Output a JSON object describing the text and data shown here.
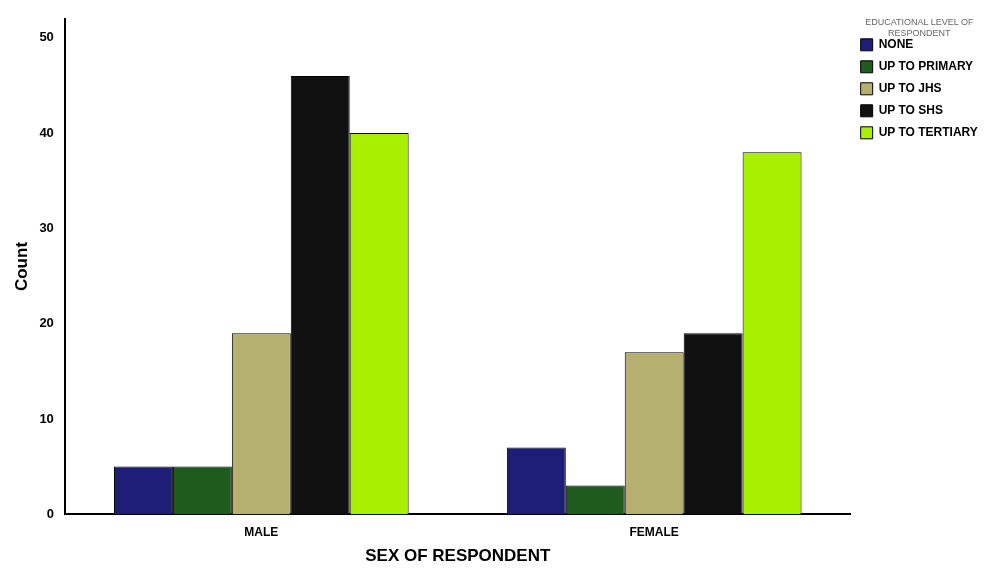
{
  "chart_data": {
    "type": "bar",
    "xlabel": "SEX OF RESPONDENT",
    "ylabel": "Count",
    "legend_title": "EDUCATIONAL LEVEL OF RESPONDENT",
    "legend": "right",
    "grid": false,
    "categories": [
      "MALE",
      "FEMALE"
    ],
    "series": [
      {
        "name": "NONE",
        "color": "#1e1e78",
        "values": [
          5,
          7
        ]
      },
      {
        "name": "UP TO PRIMARY",
        "color": "#1f5a1f",
        "values": [
          5,
          3
        ]
      },
      {
        "name": "UP TO JHS",
        "color": "#b5b070",
        "values": [
          19,
          17
        ]
      },
      {
        "name": "UP TO SHS",
        "color": "#111111",
        "values": [
          46,
          19
        ]
      },
      {
        "name": "UP TO TERTIARY",
        "color": "#a8f000",
        "values": [
          40,
          38
        ]
      }
    ],
    "ylim": [
      0,
      52
    ],
    "yticks": [
      0,
      10,
      20,
      30,
      40,
      50
    ]
  }
}
